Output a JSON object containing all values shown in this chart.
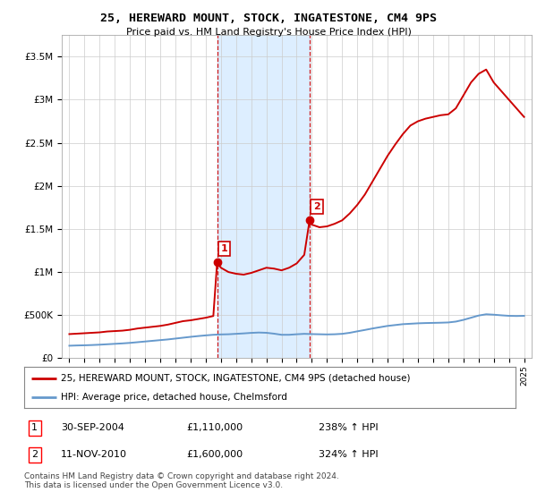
{
  "title": "25, HEREWARD MOUNT, STOCK, INGATESTONE, CM4 9PS",
  "subtitle": "Price paid vs. HM Land Registry's House Price Index (HPI)",
  "legend_line1": "25, HEREWARD MOUNT, STOCK, INGATESTONE, CM4 9PS (detached house)",
  "legend_line2": "HPI: Average price, detached house, Chelmsford",
  "transaction1_label": "1",
  "transaction1_date": "30-SEP-2004",
  "transaction1_price": "£1,110,000",
  "transaction1_hpi": "238% ↑ HPI",
  "transaction2_label": "2",
  "transaction2_date": "11-NOV-2010",
  "transaction2_price": "£1,600,000",
  "transaction2_hpi": "324% ↑ HPI",
  "footer": "Contains HM Land Registry data © Crown copyright and database right 2024.\nThis data is licensed under the Open Government Licence v3.0.",
  "ylim": [
    0,
    3750000
  ],
  "yticks": [
    0,
    500000,
    1000000,
    1500000,
    2000000,
    2500000,
    3000000,
    3500000
  ],
  "ytick_labels": [
    "£0",
    "£500K",
    "£1M",
    "£1.5M",
    "£2M",
    "£2.5M",
    "£3M",
    "£3.5M"
  ],
  "background_color": "#ffffff",
  "plot_bg_color": "#ffffff",
  "grid_color": "#cccccc",
  "red_line_color": "#cc0000",
  "blue_line_color": "#6699cc",
  "shaded_color": "#ddeeff",
  "marker1_x": 2004.75,
  "marker1_y": 1110000,
  "marker2_x": 2010.85,
  "marker2_y": 1600000,
  "xmin": 1994.5,
  "xmax": 2025.5,
  "red_hpi_data": [
    [
      1995.0,
      280000
    ],
    [
      1995.5,
      285000
    ],
    [
      1996.0,
      290000
    ],
    [
      1996.5,
      295000
    ],
    [
      1997.0,
      300000
    ],
    [
      1997.5,
      310000
    ],
    [
      1998.0,
      315000
    ],
    [
      1998.5,
      320000
    ],
    [
      1999.0,
      330000
    ],
    [
      1999.5,
      345000
    ],
    [
      2000.0,
      355000
    ],
    [
      2000.5,
      365000
    ],
    [
      2001.0,
      375000
    ],
    [
      2001.5,
      390000
    ],
    [
      2002.0,
      410000
    ],
    [
      2002.5,
      430000
    ],
    [
      2003.0,
      440000
    ],
    [
      2003.5,
      455000
    ],
    [
      2004.0,
      470000
    ],
    [
      2004.5,
      490000
    ],
    [
      2004.75,
      1110000
    ],
    [
      2005.0,
      1050000
    ],
    [
      2005.5,
      1000000
    ],
    [
      2006.0,
      980000
    ],
    [
      2006.5,
      970000
    ],
    [
      2007.0,
      990000
    ],
    [
      2007.5,
      1020000
    ],
    [
      2008.0,
      1050000
    ],
    [
      2008.5,
      1040000
    ],
    [
      2009.0,
      1020000
    ],
    [
      2009.5,
      1050000
    ],
    [
      2010.0,
      1100000
    ],
    [
      2010.5,
      1200000
    ],
    [
      2010.85,
      1600000
    ],
    [
      2011.0,
      1550000
    ],
    [
      2011.5,
      1520000
    ],
    [
      2012.0,
      1530000
    ],
    [
      2012.5,
      1560000
    ],
    [
      2013.0,
      1600000
    ],
    [
      2013.5,
      1680000
    ],
    [
      2014.0,
      1780000
    ],
    [
      2014.5,
      1900000
    ],
    [
      2015.0,
      2050000
    ],
    [
      2015.5,
      2200000
    ],
    [
      2016.0,
      2350000
    ],
    [
      2016.5,
      2480000
    ],
    [
      2017.0,
      2600000
    ],
    [
      2017.5,
      2700000
    ],
    [
      2018.0,
      2750000
    ],
    [
      2018.5,
      2780000
    ],
    [
      2019.0,
      2800000
    ],
    [
      2019.5,
      2820000
    ],
    [
      2020.0,
      2830000
    ],
    [
      2020.5,
      2900000
    ],
    [
      2021.0,
      3050000
    ],
    [
      2021.5,
      3200000
    ],
    [
      2022.0,
      3300000
    ],
    [
      2022.5,
      3350000
    ],
    [
      2023.0,
      3200000
    ],
    [
      2023.5,
      3100000
    ],
    [
      2024.0,
      3000000
    ],
    [
      2024.5,
      2900000
    ],
    [
      2025.0,
      2800000
    ]
  ],
  "blue_hpi_data": [
    [
      1995.0,
      145000
    ],
    [
      1995.5,
      148000
    ],
    [
      1996.0,
      150000
    ],
    [
      1996.5,
      153000
    ],
    [
      1997.0,
      157000
    ],
    [
      1997.5,
      162000
    ],
    [
      1998.0,
      167000
    ],
    [
      1998.5,
      172000
    ],
    [
      1999.0,
      178000
    ],
    [
      1999.5,
      186000
    ],
    [
      2000.0,
      194000
    ],
    [
      2000.5,
      202000
    ],
    [
      2001.0,
      210000
    ],
    [
      2001.5,
      218000
    ],
    [
      2002.0,
      228000
    ],
    [
      2002.5,
      238000
    ],
    [
      2003.0,
      248000
    ],
    [
      2003.5,
      257000
    ],
    [
      2004.0,
      265000
    ],
    [
      2004.5,
      272000
    ],
    [
      2005.0,
      276000
    ],
    [
      2005.5,
      278000
    ],
    [
      2006.0,
      283000
    ],
    [
      2006.5,
      288000
    ],
    [
      2007.0,
      294000
    ],
    [
      2007.5,
      298000
    ],
    [
      2008.0,
      295000
    ],
    [
      2008.5,
      285000
    ],
    [
      2009.0,
      272000
    ],
    [
      2009.5,
      272000
    ],
    [
      2010.0,
      278000
    ],
    [
      2010.5,
      283000
    ],
    [
      2011.0,
      280000
    ],
    [
      2011.5,
      278000
    ],
    [
      2012.0,
      276000
    ],
    [
      2012.5,
      278000
    ],
    [
      2013.0,
      283000
    ],
    [
      2013.5,
      295000
    ],
    [
      2014.0,
      312000
    ],
    [
      2014.5,
      328000
    ],
    [
      2015.0,
      345000
    ],
    [
      2015.5,
      360000
    ],
    [
      2016.0,
      375000
    ],
    [
      2016.5,
      385000
    ],
    [
      2017.0,
      395000
    ],
    [
      2017.5,
      400000
    ],
    [
      2018.0,
      405000
    ],
    [
      2018.5,
      408000
    ],
    [
      2019.0,
      410000
    ],
    [
      2019.5,
      412000
    ],
    [
      2020.0,
      415000
    ],
    [
      2020.5,
      425000
    ],
    [
      2021.0,
      445000
    ],
    [
      2021.5,
      470000
    ],
    [
      2022.0,
      495000
    ],
    [
      2022.5,
      510000
    ],
    [
      2023.0,
      505000
    ],
    [
      2023.5,
      498000
    ],
    [
      2024.0,
      492000
    ],
    [
      2024.5,
      490000
    ],
    [
      2025.0,
      492000
    ]
  ]
}
